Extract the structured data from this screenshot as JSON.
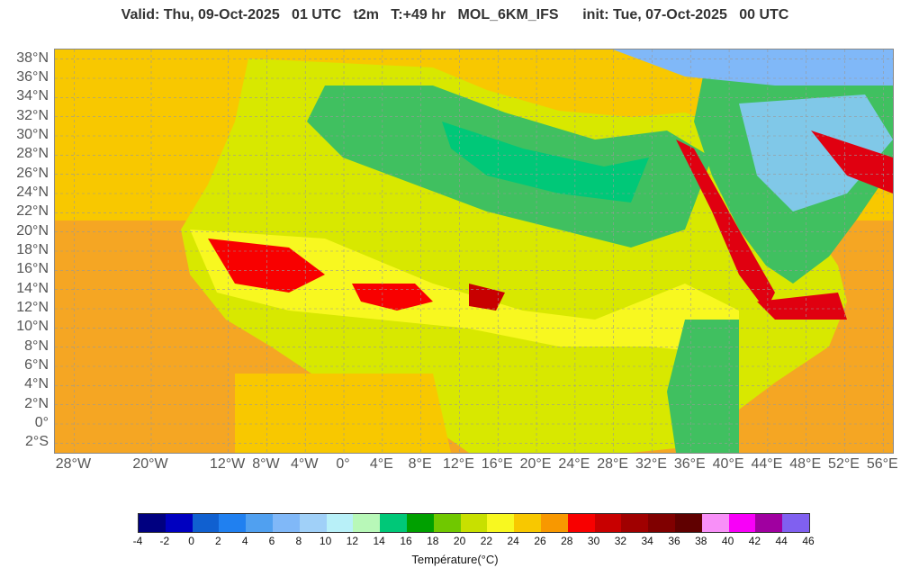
{
  "title": "Valid: Thu, 09-Oct-2025   01 UTC   t2m   T:+49 hr   MOL_6KM_IFS      init: Tue, 07-Oct-2025   00 UTC",
  "map": {
    "variable": "t2m",
    "lat_labels": [
      "38°N",
      "36°N",
      "34°N",
      "32°N",
      "30°N",
      "28°N",
      "26°N",
      "24°N",
      "22°N",
      "20°N",
      "18°N",
      "16°N",
      "14°N",
      "12°N",
      "10°N",
      "8°N",
      "6°N",
      "4°N",
      "2°N",
      "0°",
      "2°S"
    ],
    "lon_labels": [
      "28°W",
      "20°W",
      "12°W",
      "8°W",
      "4°W",
      "0°",
      "4°E",
      "8°E",
      "12°E",
      "16°E",
      "20°E",
      "24°E",
      "28°E",
      "32°E",
      "36°E",
      "40°E",
      "44°E",
      "48°E",
      "52°E",
      "56°E"
    ],
    "lat_values": [
      38,
      36,
      34,
      32,
      30,
      28,
      26,
      24,
      22,
      20,
      18,
      16,
      14,
      12,
      10,
      8,
      6,
      4,
      2,
      0,
      -2
    ],
    "lon_values": [
      -28,
      -20,
      -12,
      -8,
      -4,
      0,
      4,
      8,
      12,
      16,
      20,
      24,
      28,
      32,
      36,
      40,
      44,
      48,
      52,
      56
    ],
    "lat_range": [
      -3,
      39
    ],
    "lon_range": [
      -30,
      57
    ],
    "grid": true
  },
  "colorbar": {
    "title": "Température(°C)",
    "ticks": [
      "-4",
      "-2",
      "0",
      "2",
      "4",
      "6",
      "8",
      "10",
      "12",
      "14",
      "16",
      "18",
      "20",
      "22",
      "24",
      "26",
      "28",
      "30",
      "32",
      "34",
      "36",
      "38",
      "40",
      "42",
      "44",
      "46"
    ],
    "colors": [
      "#000080",
      "#0000c0",
      "#1060d0",
      "#2080f0",
      "#50a0f0",
      "#80b8f8",
      "#a0d0f8",
      "#b8f0f8",
      "#b8f8b8",
      "#00c878",
      "#00a000",
      "#70c800",
      "#c8e000",
      "#f8f820",
      "#f8c800",
      "#f89800",
      "#f80000",
      "#c80000",
      "#a00000",
      "#800000",
      "#600000",
      "#f890f8",
      "#f800f8",
      "#a000a0",
      "#8060f0"
    ]
  }
}
